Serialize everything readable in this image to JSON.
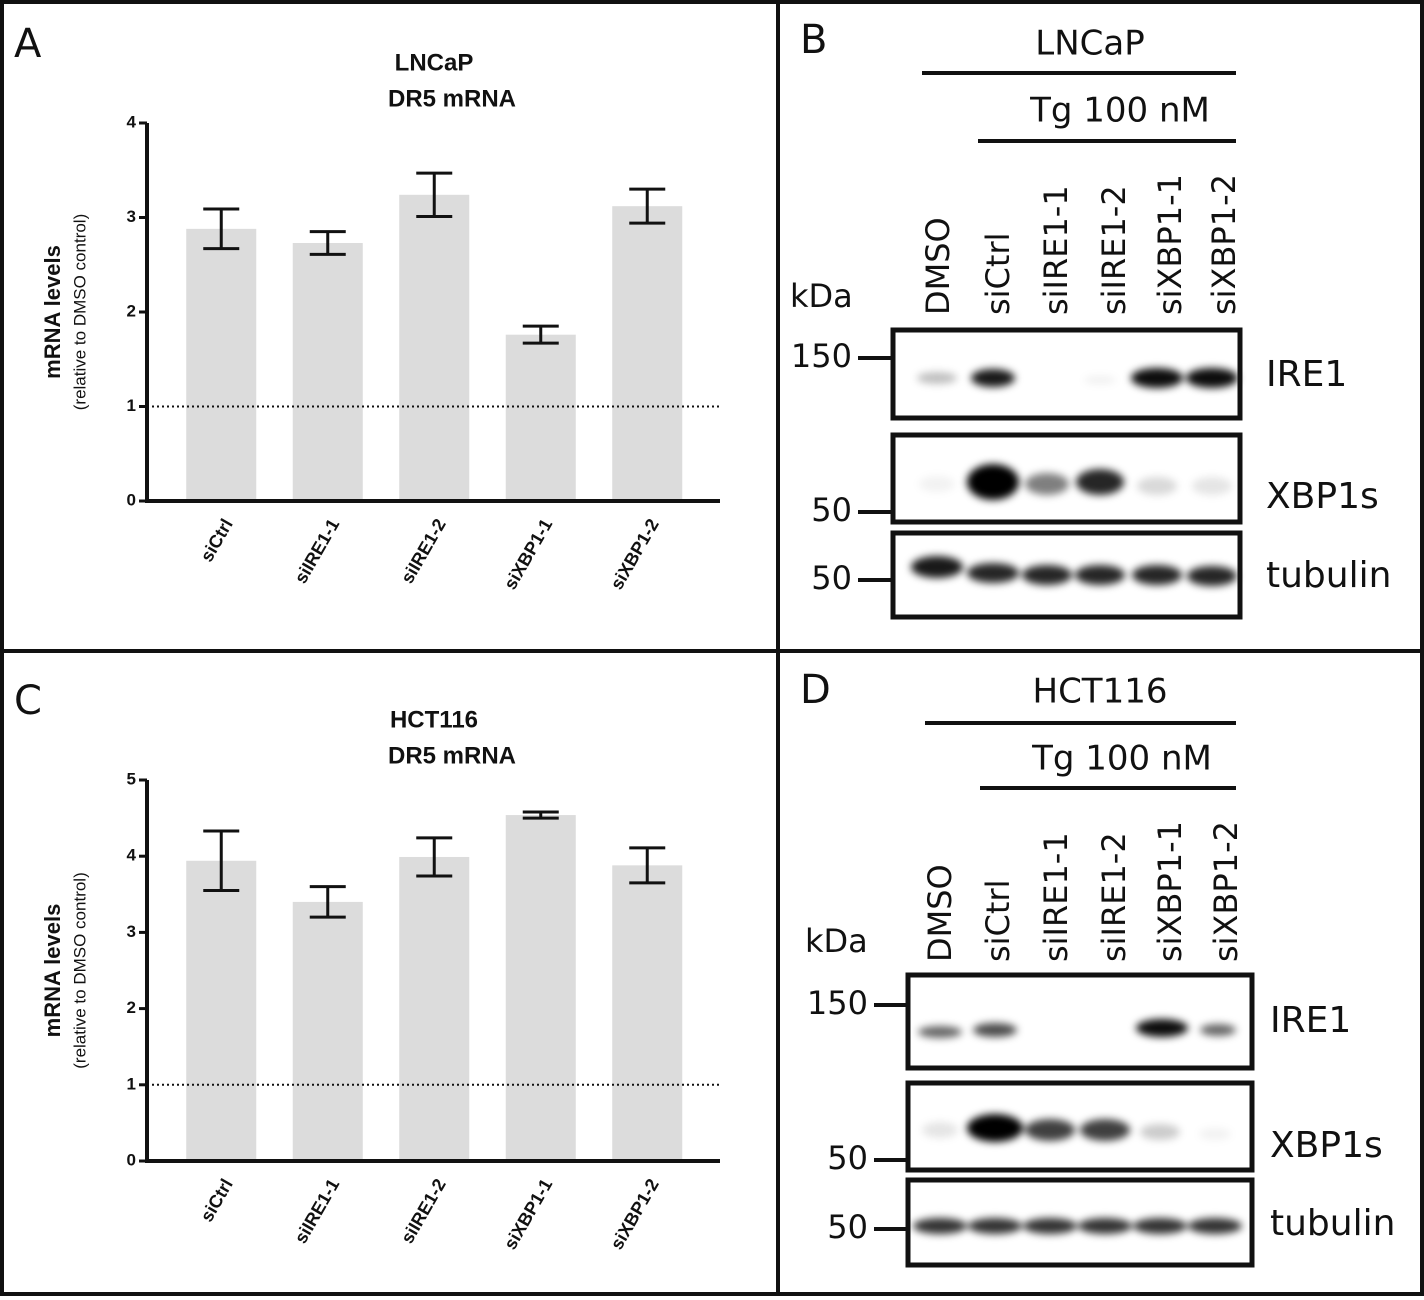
{
  "chart_data": [
    {
      "type": "bar",
      "panel": "A",
      "title": [
        "LNCaP",
        "DR5 mRNA"
      ],
      "y_label": [
        "mRNA levels",
        "(relative to DMSO control)"
      ],
      "categories": [
        "siCtrl",
        "siIRE1-1",
        "siIRE1-2",
        "siXBP1-1",
        "siXBP1-2"
      ],
      "values": [
        2.88,
        2.73,
        3.24,
        1.76,
        3.12
      ],
      "errors": [
        0.21,
        0.12,
        0.23,
        0.09,
        0.18
      ],
      "color": "#dcdcdc",
      "ylim": [
        0,
        4
      ],
      "yticks": [
        0,
        1,
        2,
        3,
        4
      ],
      "reference_line": 1
    },
    {
      "type": "bar",
      "panel": "C",
      "title": [
        "HCT116",
        "DR5 mRNA"
      ],
      "y_label": [
        "mRNA levels",
        "(relative to DMSO control)"
      ],
      "categories": [
        "siCtrl",
        "siIRE1-1",
        "siIRE1-2",
        "siXBP1-1",
        "siXBP1-2"
      ],
      "values": [
        3.94,
        3.4,
        3.99,
        4.54,
        3.88
      ],
      "errors": [
        0.39,
        0.2,
        0.25,
        0.04,
        0.23
      ],
      "color": "#dcdcdc",
      "ylim": [
        0,
        5
      ],
      "yticks": [
        0,
        1,
        2,
        3,
        4,
        5
      ],
      "reference_line": 1
    }
  ],
  "blots": [
    {
      "panel": "B",
      "cell_line": "LNCaP",
      "treatment": "Tg 100 nM",
      "lanes": [
        "DMSO",
        "siCtrl",
        "siIRE1-1",
        "siIRE1-2",
        "siXBP1-1",
        "siXBP1-2"
      ],
      "kda_label": "kDa",
      "markers": [
        "150",
        "50",
        "50"
      ],
      "proteins": [
        "IRE1",
        "XBP1s",
        "tubulin"
      ]
    },
    {
      "panel": "D",
      "cell_line": "HCT116",
      "treatment": "Tg 100 nM",
      "lanes": [
        "DMSO",
        "siCtrl",
        "siIRE1-1",
        "siIRE1-2",
        "siXBP1-1",
        "siXBP1-2"
      ],
      "kda_label": "kDa",
      "markers": [
        "150",
        "50",
        "50"
      ],
      "proteins": [
        "IRE1",
        "XBP1s",
        "tubulin"
      ]
    }
  ]
}
